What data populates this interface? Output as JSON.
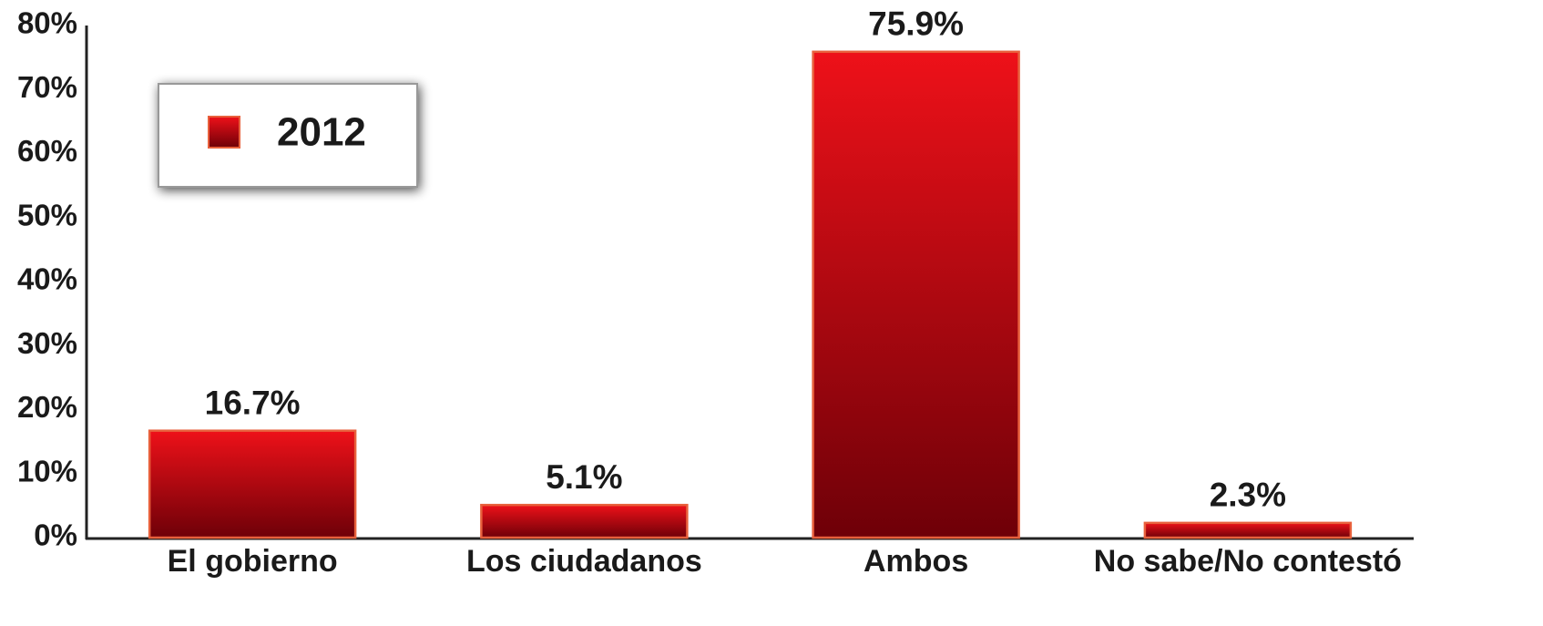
{
  "chart_data": {
    "type": "bar",
    "categories": [
      "El gobierno",
      "Los ciudadanos",
      "Ambos",
      "No sabe/No contestó"
    ],
    "series": [
      {
        "name": "2012",
        "color": "#ee1119",
        "values": [
          16.7,
          5.1,
          75.9,
          2.3
        ],
        "value_labels": [
          "16.7%",
          "5.1%",
          "75.9%",
          "2.3%"
        ]
      }
    ],
    "ylim": [
      0,
      80
    ],
    "yticks": [
      {
        "value": 0,
        "label": "0%"
      },
      {
        "value": 10,
        "label": "10%"
      },
      {
        "value": 20,
        "label": "20%"
      },
      {
        "value": 30,
        "label": "30%"
      },
      {
        "value": 40,
        "label": "40%"
      },
      {
        "value": 50,
        "label": "50%"
      },
      {
        "value": 60,
        "label": "60%"
      },
      {
        "value": 70,
        "label": "70%"
      },
      {
        "value": 80,
        "label": "80%"
      }
    ],
    "grid": false,
    "legend": "upper left"
  }
}
